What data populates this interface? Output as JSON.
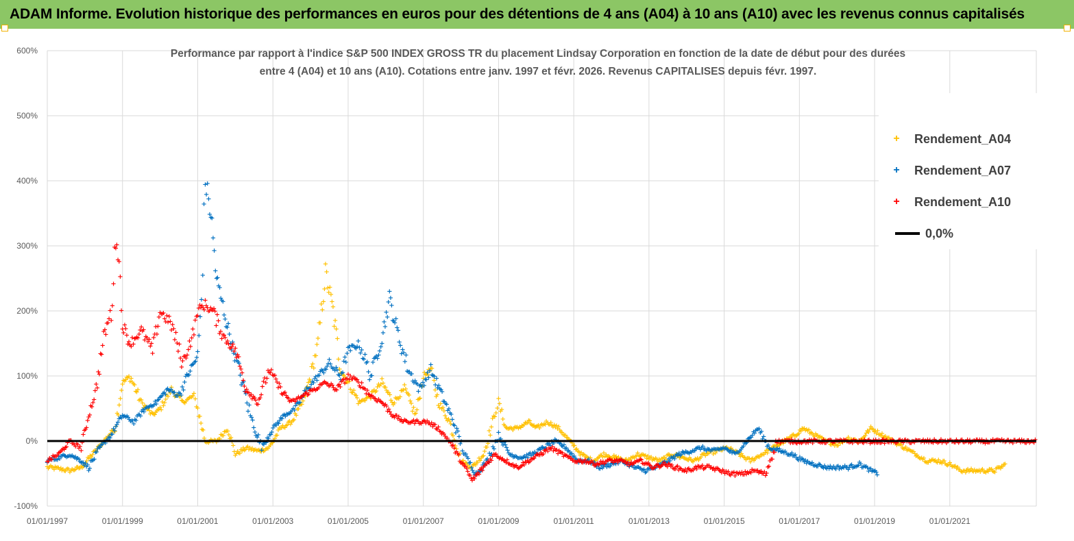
{
  "banner": {
    "title": "ADAM Informe. Evolution historique des performances en euros pour des détentions de 4 ans (A04) à 10 ans (A10) avec les revenus connus capitalisés"
  },
  "colors": {
    "banner": "#8cc665",
    "A04": "#ffc000",
    "A07": "#0070c0",
    "A10": "#ff0000",
    "zero": "#000000",
    "grid": "#d9d9d9",
    "axis_text": "#595959"
  },
  "chart_data": {
    "type": "scatter",
    "title_line1": "Performance par rapport à l'indice S&P 500 INDEX GROSS TR  du placement Lindsay Corporation en fonction de la date de début pour des durées",
    "title_line2": "entre 4 (A04) et 10 ans (A10). Cotations entre janv. 1997 et févr. 2026. Revenus CAPITALISES depuis févr. 1997.",
    "y_ticks": [
      "600%",
      "500%",
      "400%",
      "300%",
      "200%",
      "100%",
      "0%",
      "-100%"
    ],
    "y_tick_values": [
      600,
      500,
      400,
      300,
      200,
      100,
      0,
      -100
    ],
    "x_ticks": [
      "01/01/1997",
      "01/01/1999",
      "01/01/2001",
      "01/01/2003",
      "01/01/2005",
      "01/01/2007",
      "01/01/2009",
      "01/01/2011",
      "01/01/2013",
      "01/01/2015",
      "01/01/2017",
      "01/01/2019",
      "01/01/2021"
    ],
    "x_tick_years": [
      1997,
      1999,
      2001,
      2003,
      2005,
      2007,
      2009,
      2011,
      2013,
      2015,
      2017,
      2019,
      2021
    ],
    "xlim": [
      1997.0,
      2023.3
    ],
    "ylim": [
      -100,
      600
    ],
    "legend": [
      {
        "name": "Rendement_A04",
        "marker": "+"
      },
      {
        "name": "Rendement_A07",
        "marker": "+"
      },
      {
        "name": "Rendement_A10",
        "marker": "+"
      },
      {
        "name": "0,0%",
        "marker": "line"
      }
    ],
    "series": [
      {
        "name": "Rendement_A04",
        "x": [
          1997.0,
          1997.3,
          1997.6,
          1997.9,
          1998.2,
          1998.5,
          1998.8,
          1999.0,
          1999.2,
          1999.5,
          1999.8,
          2000.0,
          2000.3,
          2000.6,
          2000.9,
          2001.0,
          2001.2,
          2001.5,
          2001.8,
          2002.0,
          2002.3,
          2002.6,
          2002.9,
          2003.2,
          2003.5,
          2003.8,
          2004.0,
          2004.2,
          2004.4,
          2004.6,
          2004.8,
          2005.0,
          2005.3,
          2005.6,
          2005.9,
          2006.2,
          2006.5,
          2006.8,
          2007.0,
          2007.2,
          2007.4,
          2007.7,
          2008.0,
          2008.3,
          2008.6,
          2008.9,
          2009.0,
          2009.2,
          2009.5,
          2009.8,
          2010.0,
          2010.3,
          2010.6,
          2010.9,
          2011.2,
          2011.5,
          2011.8,
          2012.1,
          2012.4,
          2012.7,
          2013.0,
          2013.3,
          2013.6,
          2013.9,
          2014.2,
          2014.5,
          2014.8,
          2015.1,
          2015.4,
          2015.7,
          2016.0,
          2016.3,
          2016.6,
          2016.9,
          2017.1,
          2017.4,
          2017.7,
          2018.0,
          2018.3,
          2018.6,
          2018.9,
          2019.2,
          2019.5,
          2019.8,
          2020.1,
          2020.4,
          2020.7,
          2021.0,
          2021.3,
          2021.6,
          2021.9,
          2022.2,
          2022.5
        ],
        "y": [
          -40,
          -42,
          -45,
          -40,
          -20,
          0,
          20,
          90,
          100,
          60,
          40,
          50,
          80,
          60,
          70,
          50,
          0,
          0,
          20,
          -20,
          -10,
          -15,
          -10,
          20,
          30,
          60,
          100,
          150,
          260,
          200,
          110,
          90,
          60,
          70,
          90,
          60,
          80,
          40,
          100,
          110,
          60,
          30,
          -30,
          -40,
          -20,
          40,
          60,
          20,
          20,
          30,
          20,
          30,
          20,
          0,
          -20,
          -30,
          -20,
          -25,
          -30,
          -20,
          -25,
          -30,
          -20,
          -25,
          -30,
          -20,
          -15,
          -10,
          -20,
          -30,
          -20,
          -10,
          0,
          10,
          20,
          10,
          0,
          -5,
          5,
          0,
          20,
          10,
          0,
          -10,
          -20,
          -30,
          -30,
          -35,
          -45,
          -45,
          -45,
          -45,
          -35
        ]
      },
      {
        "name": "Rendement_A07",
        "x": [
          1997.0,
          1997.3,
          1997.6,
          1997.9,
          1998.1,
          1998.4,
          1998.7,
          1999.0,
          1999.3,
          1999.6,
          1999.9,
          2000.2,
          2000.5,
          2000.8,
          2001.0,
          2001.1,
          2001.2,
          2001.35,
          2001.5,
          2001.7,
          2001.9,
          2002.1,
          2002.4,
          2002.7,
          2003.0,
          2003.3,
          2003.6,
          2003.9,
          2004.2,
          2004.5,
          2004.8,
          2005.0,
          2005.3,
          2005.6,
          2005.9,
          2006.1,
          2006.3,
          2006.6,
          2006.9,
          2007.2,
          2007.5,
          2007.8,
          2008.1,
          2008.4,
          2008.7,
          2009.0,
          2009.3,
          2009.6,
          2009.9,
          2010.2,
          2010.5,
          2010.8,
          2011.1,
          2011.4,
          2011.7,
          2012.0,
          2012.3,
          2012.6,
          2012.9,
          2013.2,
          2013.5,
          2013.8,
          2014.1,
          2014.4,
          2014.7,
          2015.0,
          2015.3,
          2015.6,
          2015.9,
          2016.2,
          2016.5,
          2016.8,
          2017.1,
          2017.4,
          2017.7,
          2018.0,
          2018.3,
          2018.6,
          2018.9,
          2019.1
        ],
        "y": [
          -30,
          -25,
          -20,
          -30,
          -40,
          -10,
          10,
          40,
          30,
          50,
          60,
          80,
          70,
          110,
          130,
          220,
          400,
          350,
          250,
          200,
          150,
          110,
          40,
          -10,
          20,
          40,
          50,
          80,
          100,
          120,
          100,
          140,
          150,
          100,
          160,
          220,
          170,
          110,
          80,
          110,
          70,
          30,
          -20,
          -50,
          -30,
          10,
          -20,
          -25,
          -20,
          -10,
          0,
          -10,
          -30,
          -30,
          -40,
          -35,
          -30,
          -40,
          -45,
          -40,
          -30,
          -20,
          -15,
          -10,
          -15,
          -10,
          -20,
          0,
          20,
          -10,
          -15,
          -20,
          -30,
          -35,
          -40,
          -40,
          -40,
          -35,
          -45,
          -50
        ]
      },
      {
        "name": "Rendement_A10",
        "x": [
          1997.0,
          1997.3,
          1997.6,
          1997.9,
          1998.1,
          1998.3,
          1998.5,
          1998.7,
          1998.85,
          1999.0,
          1999.2,
          1999.5,
          1999.8,
          2000.0,
          2000.3,
          2000.6,
          2000.9,
          2001.0,
          2001.2,
          2001.4,
          2001.7,
          2002.0,
          2002.3,
          2002.6,
          2002.9,
          2003.2,
          2003.5,
          2003.8,
          2004.1,
          2004.4,
          2004.7,
          2005.0,
          2005.3,
          2005.6,
          2005.9,
          2006.2,
          2006.5,
          2006.8,
          2007.1,
          2007.4,
          2007.7,
          2008.0,
          2008.3,
          2008.6,
          2008.9,
          2009.2,
          2009.5,
          2009.8,
          2010.1,
          2010.4,
          2010.7,
          2011.0,
          2011.3,
          2011.6,
          2011.9,
          2012.2,
          2012.5,
          2012.8,
          2013.1,
          2013.4,
          2013.7,
          2014.0,
          2014.3,
          2014.6,
          2014.9,
          2015.2,
          2015.5,
          2015.8,
          2016.1,
          2016.4,
          2016.7,
          2017.0,
          2017.5,
          2018.0,
          2018.5,
          2019.0,
          2019.5,
          2020.0,
          2020.5,
          2021.0,
          2021.5,
          2022.0,
          2022.5,
          2023.0,
          2023.3
        ],
        "y": [
          -30,
          -20,
          0,
          -10,
          40,
          80,
          160,
          200,
          330,
          180,
          150,
          170,
          140,
          200,
          180,
          120,
          170,
          200,
          210,
          200,
          160,
          140,
          80,
          60,
          110,
          80,
          60,
          70,
          80,
          90,
          80,
          100,
          90,
          70,
          60,
          40,
          30,
          30,
          30,
          20,
          0,
          -30,
          -60,
          -40,
          -20,
          -30,
          -40,
          -30,
          -20,
          -10,
          -20,
          -30,
          -30,
          -35,
          -30,
          -30,
          -35,
          -30,
          -40,
          -35,
          -40,
          -45,
          -40,
          -40,
          -45,
          -50,
          -50,
          -45,
          -50,
          0,
          0,
          0,
          0,
          0,
          0,
          0,
          0,
          0,
          0,
          0,
          0,
          0,
          0,
          0,
          0
        ]
      }
    ],
    "zero_line": {
      "name": "0,0%",
      "y": 0
    }
  }
}
